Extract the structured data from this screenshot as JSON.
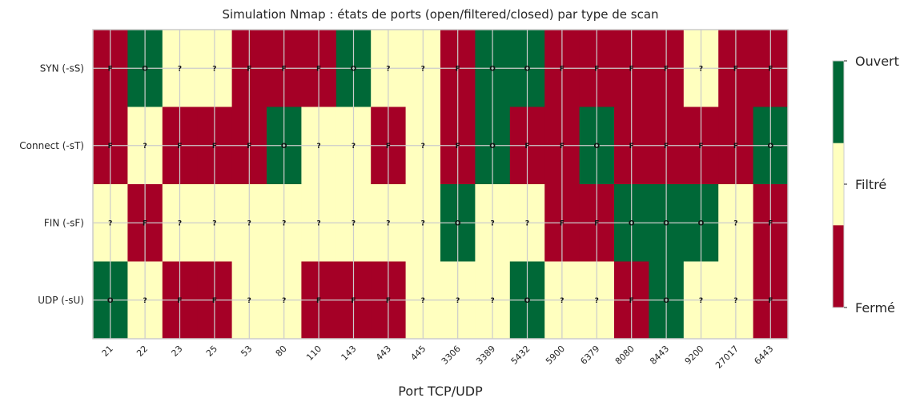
{
  "chart_data": {
    "type": "heatmap",
    "title": "Simulation Nmap : états de ports (open/filtered/closed) par type de scan",
    "xlabel": "Port TCP/UDP",
    "ylabel": "",
    "x": [
      "21",
      "22",
      "23",
      "25",
      "53",
      "80",
      "110",
      "143",
      "443",
      "445",
      "3306",
      "3389",
      "5432",
      "5900",
      "6379",
      "8080",
      "8443",
      "9200",
      "27017",
      "6443"
    ],
    "y": [
      "SYN (-sS)",
      "Connect (-sT)",
      "FIN (-sF)",
      "UDP (-sU)"
    ],
    "values": [
      [
        "F",
        "O",
        "?",
        "?",
        "F",
        "F",
        "F",
        "O",
        "?",
        "?",
        "F",
        "O",
        "O",
        "F",
        "F",
        "F",
        "F",
        "?",
        "F",
        "F"
      ],
      [
        "F",
        "?",
        "F",
        "F",
        "F",
        "O",
        "?",
        "?",
        "F",
        "?",
        "F",
        "O",
        "F",
        "F",
        "O",
        "F",
        "F",
        "F",
        "F",
        "O"
      ],
      [
        "?",
        "F",
        "?",
        "?",
        "?",
        "?",
        "?",
        "?",
        "?",
        "?",
        "O",
        "?",
        "?",
        "F",
        "F",
        "O",
        "O",
        "O",
        "?",
        "F"
      ],
      [
        "O",
        "?",
        "F",
        "F",
        "?",
        "?",
        "F",
        "F",
        "F",
        "?",
        "?",
        "?",
        "O",
        "?",
        "?",
        "F",
        "O",
        "?",
        "?",
        "F"
      ]
    ],
    "legend": {
      "O": {
        "label": "Ouvert",
        "color": "#006837"
      },
      "?": {
        "label": "Filtré",
        "color": "#ffffbf"
      },
      "F": {
        "label": "Fermé",
        "color": "#a50026"
      }
    },
    "colorbar_order": [
      "O",
      "?",
      "F"
    ],
    "grid": true,
    "gridColor": "#cccccc"
  }
}
